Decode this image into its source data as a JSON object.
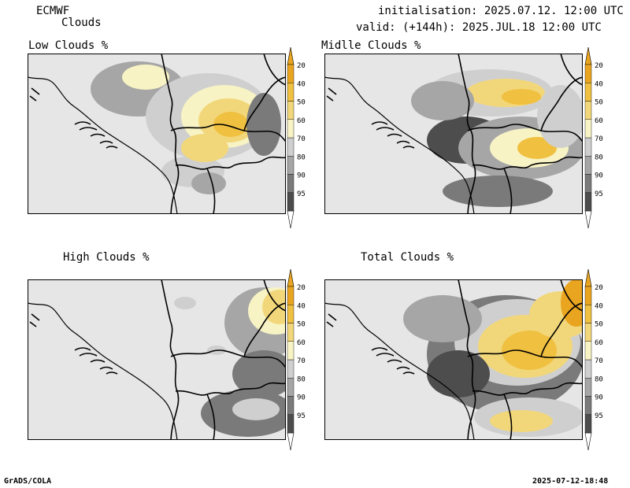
{
  "header": {
    "model": "ECMWF",
    "product": "Clouds",
    "initialisation": "initialisation: 2025.07.12. 12:00 UTC",
    "valid": "valid: (+144h): 2025.JUL.18 12:00 UTC"
  },
  "panels": [
    {
      "id": "low",
      "title": "Low Clouds %"
    },
    {
      "id": "middle",
      "title": "Midlle Clouds %"
    },
    {
      "id": "high",
      "title": "High Clouds %"
    },
    {
      "id": "total",
      "title": "Total Clouds %"
    }
  ],
  "colorbar": {
    "levels": [
      "20",
      "40",
      "50",
      "60",
      "70",
      "80",
      "90",
      "95"
    ],
    "colors": [
      "#4d4d4d",
      "#7a7a7a",
      "#a6a6a6",
      "#cfcfcf",
      "#f7f3c4",
      "#f2d77a",
      "#f0c040",
      "#eaa520"
    ],
    "lowcap": "#ffffff",
    "highcap": "#eaa520"
  },
  "footer": {
    "left": "GrADS/COLA",
    "right": "2025-07-12-18:48"
  }
}
